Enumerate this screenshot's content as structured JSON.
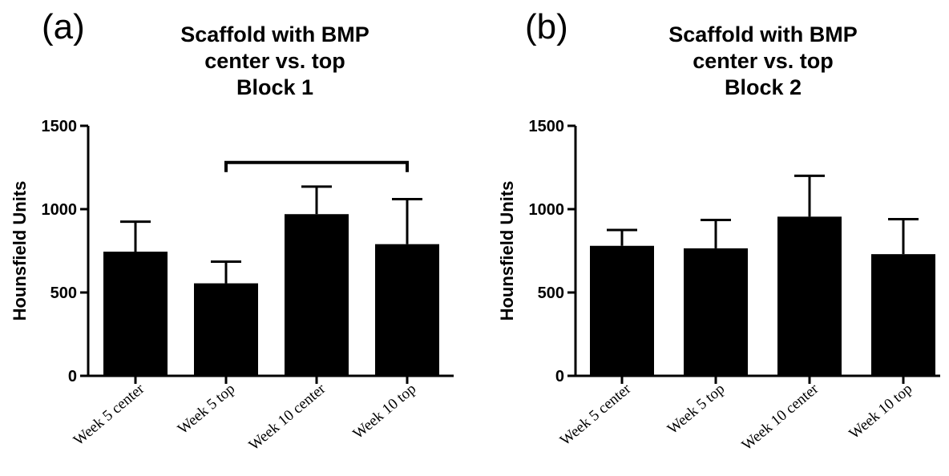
{
  "chart_data": [
    {
      "type": "bar",
      "panel_label": "(a)",
      "title_lines": [
        "Scaffold with BMP",
        "center vs. top",
        "Block 1"
      ],
      "ylabel": "Hounsfield Units",
      "xlabel": "",
      "categories": [
        "Week 5 center",
        "Week 5 top",
        "Week 10 center",
        "Week 10 top"
      ],
      "values": [
        745,
        555,
        970,
        790
      ],
      "error_upper": [
        925,
        685,
        1135,
        1060
      ],
      "ylim": [
        0,
        1500
      ],
      "yticks": [
        0,
        500,
        1000,
        1500
      ],
      "bar_color": "#000000",
      "significance_bracket": {
        "from_category": 1,
        "to_category": 3,
        "y": 1280
      }
    },
    {
      "type": "bar",
      "panel_label": "(b)",
      "title_lines": [
        "Scaffold with BMP",
        "center vs. top",
        "Block 2"
      ],
      "ylabel": "Hounsfield Units",
      "xlabel": "",
      "categories": [
        "Week 5 center",
        "Week 5 top",
        "Week 10 center",
        "Week 10 top"
      ],
      "values": [
        780,
        765,
        955,
        730
      ],
      "error_upper": [
        875,
        935,
        1200,
        940
      ],
      "ylim": [
        0,
        1500
      ],
      "yticks": [
        0,
        500,
        1000,
        1500
      ],
      "bar_color": "#000000"
    }
  ]
}
